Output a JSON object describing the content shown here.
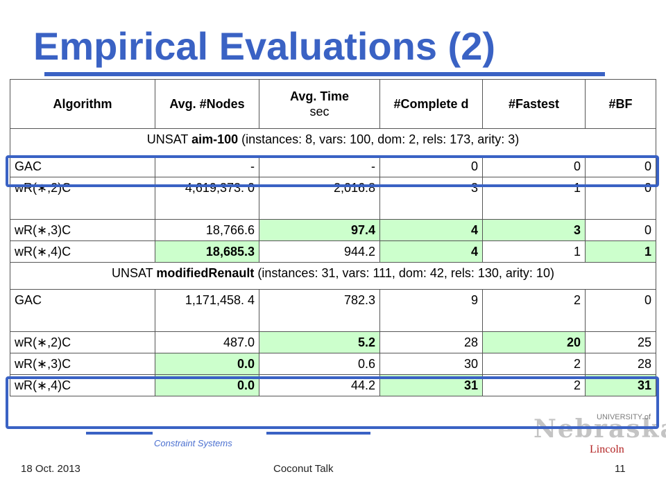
{
  "slide": {
    "title": "Empirical Evaluations (2)",
    "table": {
      "headers": [
        {
          "label": "Algorithm",
          "unit": ""
        },
        {
          "label": "Avg. #Nodes",
          "unit": ""
        },
        {
          "label": "Avg. Time",
          "unit": "sec"
        },
        {
          "label": "#Complete d",
          "unit": ""
        },
        {
          "label": "#Fastest",
          "unit": ""
        },
        {
          "label": "#BF",
          "unit": ""
        }
      ],
      "sections": [
        {
          "prefix": "UNSAT ",
          "name": "aim-100",
          "details": " (instances: 8, vars: 100, dom: 2, rels: 173, arity: 3)",
          "rows": [
            {
              "alg": "GAC",
              "nodes": "-",
              "time": "-",
              "completed": "0",
              "fastest": "0",
              "bf": "0"
            },
            {
              "alg": "wR(∗,2)C",
              "nodes": "4,619,373. 0",
              "time": "2,016.8",
              "completed": "3",
              "fastest": "1",
              "bf": "0"
            },
            {
              "alg": "wR(∗,3)C",
              "nodes": "18,766.6",
              "time": "97.4",
              "completed": "4",
              "fastest": "3",
              "bf": "0"
            },
            {
              "alg": "wR(∗,4)C",
              "nodes": "18,685.3",
              "time": "944.2",
              "completed": "4",
              "fastest": "1",
              "bf": "1"
            }
          ]
        },
        {
          "prefix": "UNSAT ",
          "name": "modifiedRenault",
          "details": " (instances: 31, vars: 111, dom: 42, rels: 130, arity: 10)",
          "rows": [
            {
              "alg": "GAC",
              "nodes": "1,171,458. 4",
              "time": "782.3",
              "completed": "9",
              "fastest": "2",
              "bf": "0"
            },
            {
              "alg": "wR(∗,2)C",
              "nodes": "487.0",
              "time": "5.2",
              "completed": "28",
              "fastest": "20",
              "bf": "25"
            },
            {
              "alg": "wR(∗,3)C",
              "nodes": "0.0",
              "time": "0.6",
              "completed": "30",
              "fastest": "2",
              "bf": "28"
            },
            {
              "alg": "wR(∗,4)C",
              "nodes": "0.0",
              "time": "44.2",
              "completed": "31",
              "fastest": "2",
              "bf": "31"
            }
          ]
        }
      ]
    },
    "watermark": "Constraint Systems",
    "logo": {
      "mark": "Nebraska",
      "university": "UNIVERSITY of",
      "city": "Lincoln"
    },
    "footer": {
      "date": "18 Oct. 2013",
      "center": "Coconut Talk",
      "page": "11"
    },
    "colors": {
      "accent": "#3a62c4",
      "highlight": "#ccffcc"
    }
  }
}
